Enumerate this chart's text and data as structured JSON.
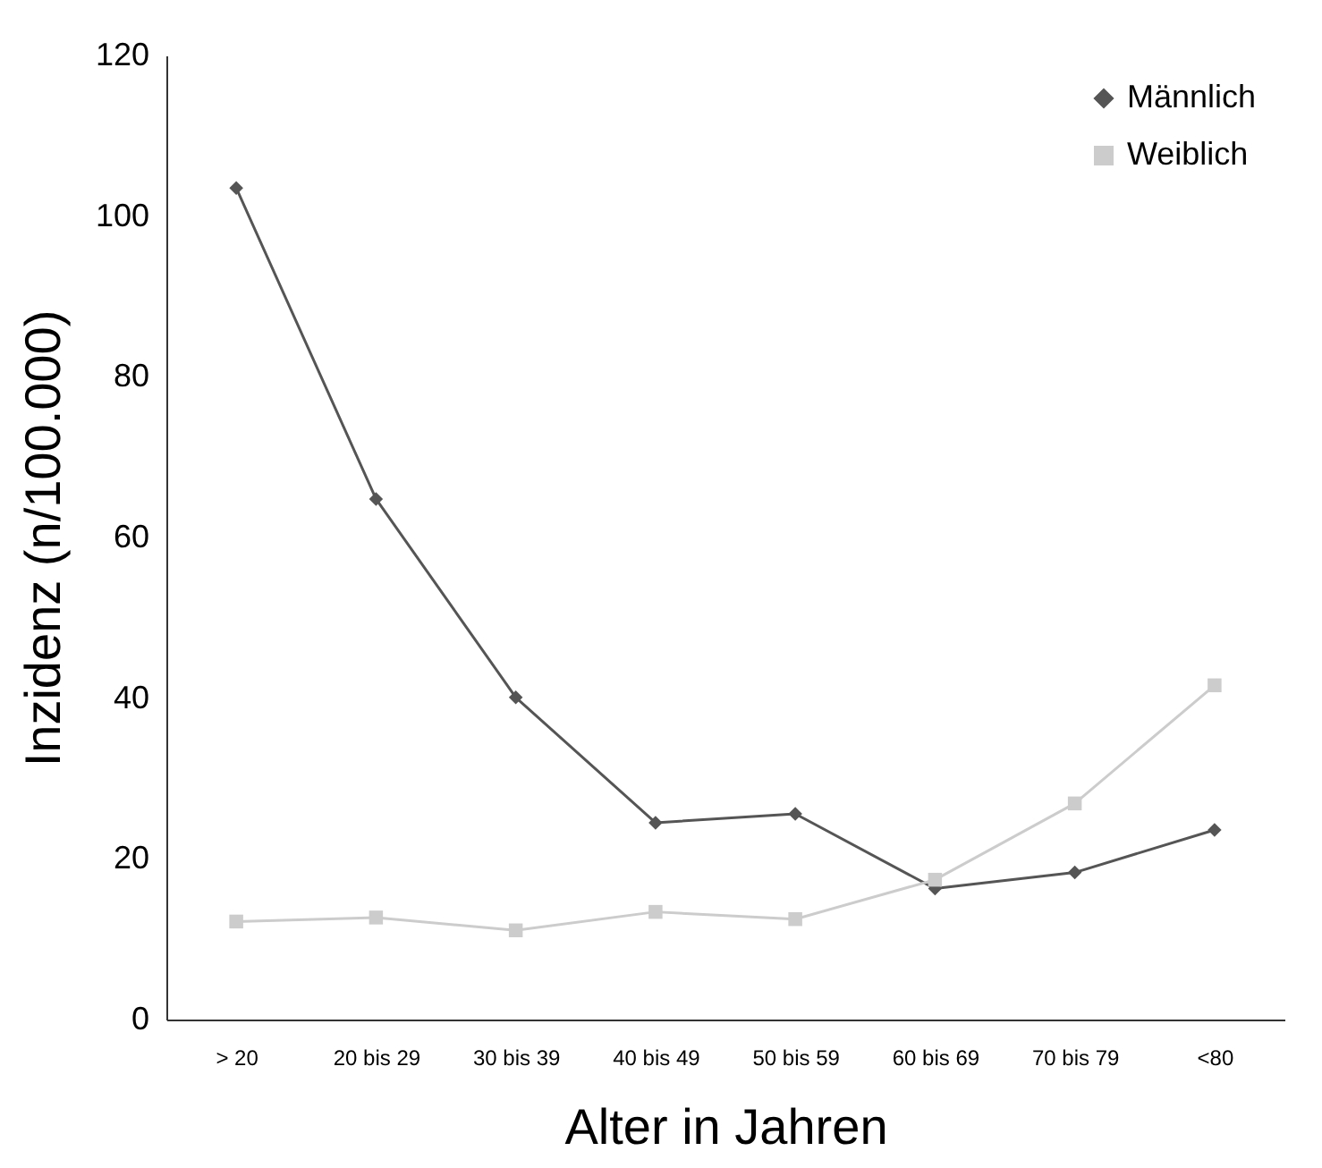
{
  "chart_data": {
    "type": "line",
    "xlabel": "Alter in Jahren",
    "ylabel": "Inzidenz (n/100.000)",
    "categories": [
      "> 20",
      "20 bis 29",
      "30 bis 39",
      "40 bis 49",
      "50 bis 59",
      "60 bis 69",
      "70 bis 79",
      "<80"
    ],
    "series": [
      {
        "name": "Männlich",
        "color": "#555555",
        "marker": "diamond",
        "values": [
          103.5,
          64.8,
          40.1,
          24.5,
          25.6,
          16.3,
          18.3,
          23.6
        ]
      },
      {
        "name": "Weiblich",
        "color": "#cccccc",
        "marker": "square",
        "values": [
          12.2,
          12.7,
          11.1,
          13.4,
          12.5,
          17.4,
          26.9,
          41.6
        ]
      }
    ],
    "ylim": [
      0,
      120
    ],
    "yticks": [
      0,
      20,
      40,
      60,
      80,
      100,
      120
    ],
    "grid": false,
    "legend": "top right"
  }
}
